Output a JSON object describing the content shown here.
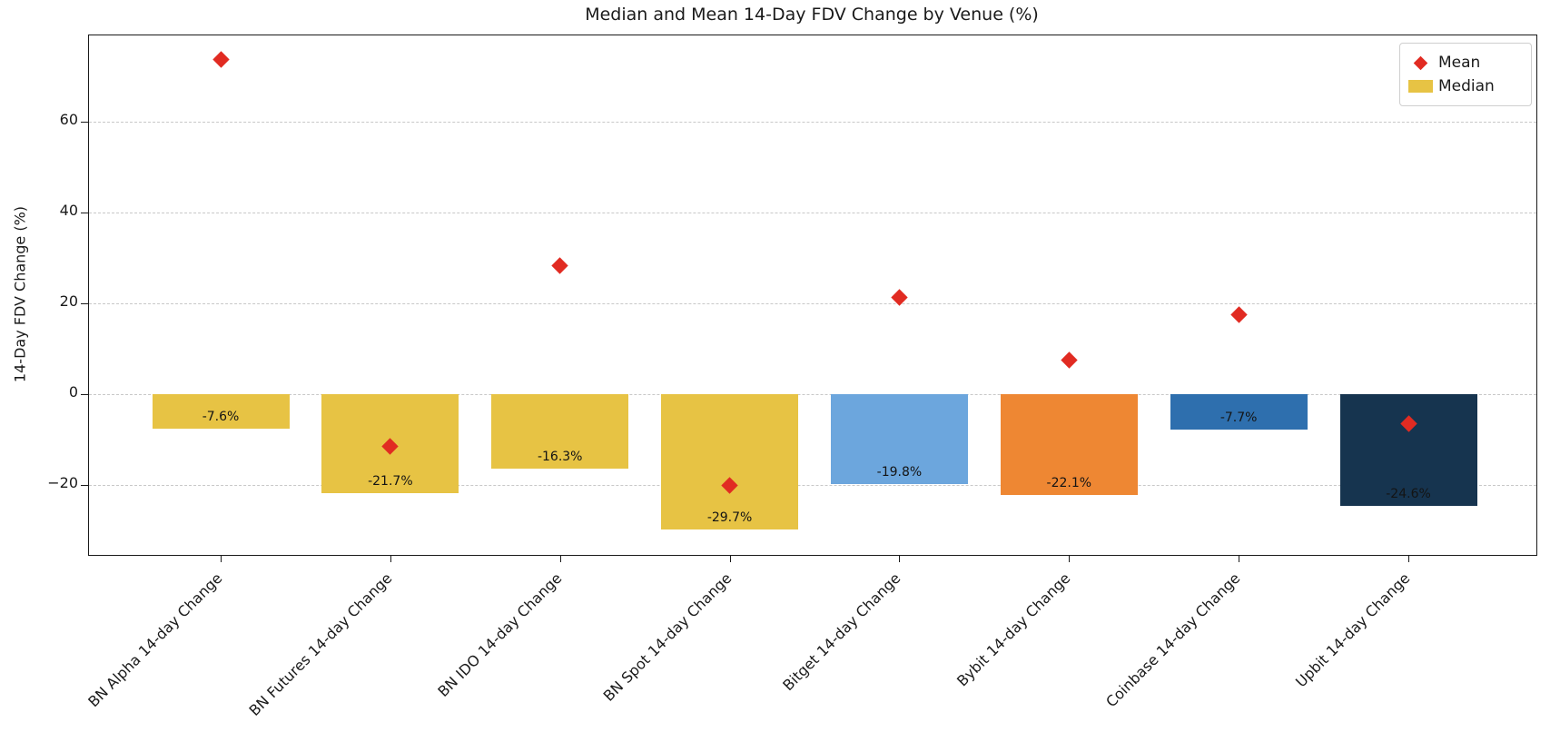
{
  "figure": {
    "title": "Median and Mean 14-Day FDV Change by Venue (%)",
    "ylabel": "14-Day FDV Change (%)"
  },
  "legend": {
    "position": "upper right",
    "entries": [
      {
        "label": "Mean",
        "marker": "diamond-icon",
        "color": "#E12B22"
      },
      {
        "label": "Median",
        "marker": "swatch-icon",
        "color": "#E7C344"
      }
    ]
  },
  "chart_data": {
    "type": "bar",
    "title": "Median and Mean 14-Day FDV Change by Venue (%)",
    "xlabel": "",
    "ylabel": "14-Day FDV Change (%)",
    "categories": [
      "BN Alpha 14-day Change",
      "BN Futures 14-day Change",
      "BN IDO 14-day Change",
      "BN Spot 14-day Change",
      "Bitget 14-day Change",
      "Bybit 14-day Change",
      "Coinbase 14-day Change",
      "Upbit 14-day Change"
    ],
    "series": [
      {
        "name": "Median",
        "type": "bar",
        "values": [
          -7.6,
          -21.7,
          -16.3,
          -29.7,
          -19.8,
          -22.1,
          -7.7,
          -24.6
        ],
        "colors": [
          "#E7C344",
          "#E7C344",
          "#E7C344",
          "#E7C344",
          "#6CA6DD",
          "#EE8733",
          "#2E6FAE",
          "#16344F"
        ]
      },
      {
        "name": "Mean",
        "type": "scatter",
        "marker": "diamond",
        "color": "#E12B22",
        "values": [
          73.8,
          -11.4,
          28.4,
          -20.0,
          21.4,
          7.6,
          17.6,
          -6.4
        ]
      }
    ],
    "bar_value_labels": [
      "-7.6%",
      "-21.7%",
      "-16.3%",
      "-29.7%",
      "-19.8%",
      "-22.1%",
      "-7.7%",
      "-24.6%"
    ],
    "yticks": [
      60,
      40,
      20,
      0,
      -20
    ],
    "ytick_labels": [
      "60",
      "40",
      "20",
      "0",
      "−20"
    ],
    "ylim": [
      -35.5,
      79.5
    ],
    "grid": {
      "axis": "y",
      "style": "dashed",
      "color": "#c8c8c8"
    },
    "legend_position": "upper right"
  }
}
